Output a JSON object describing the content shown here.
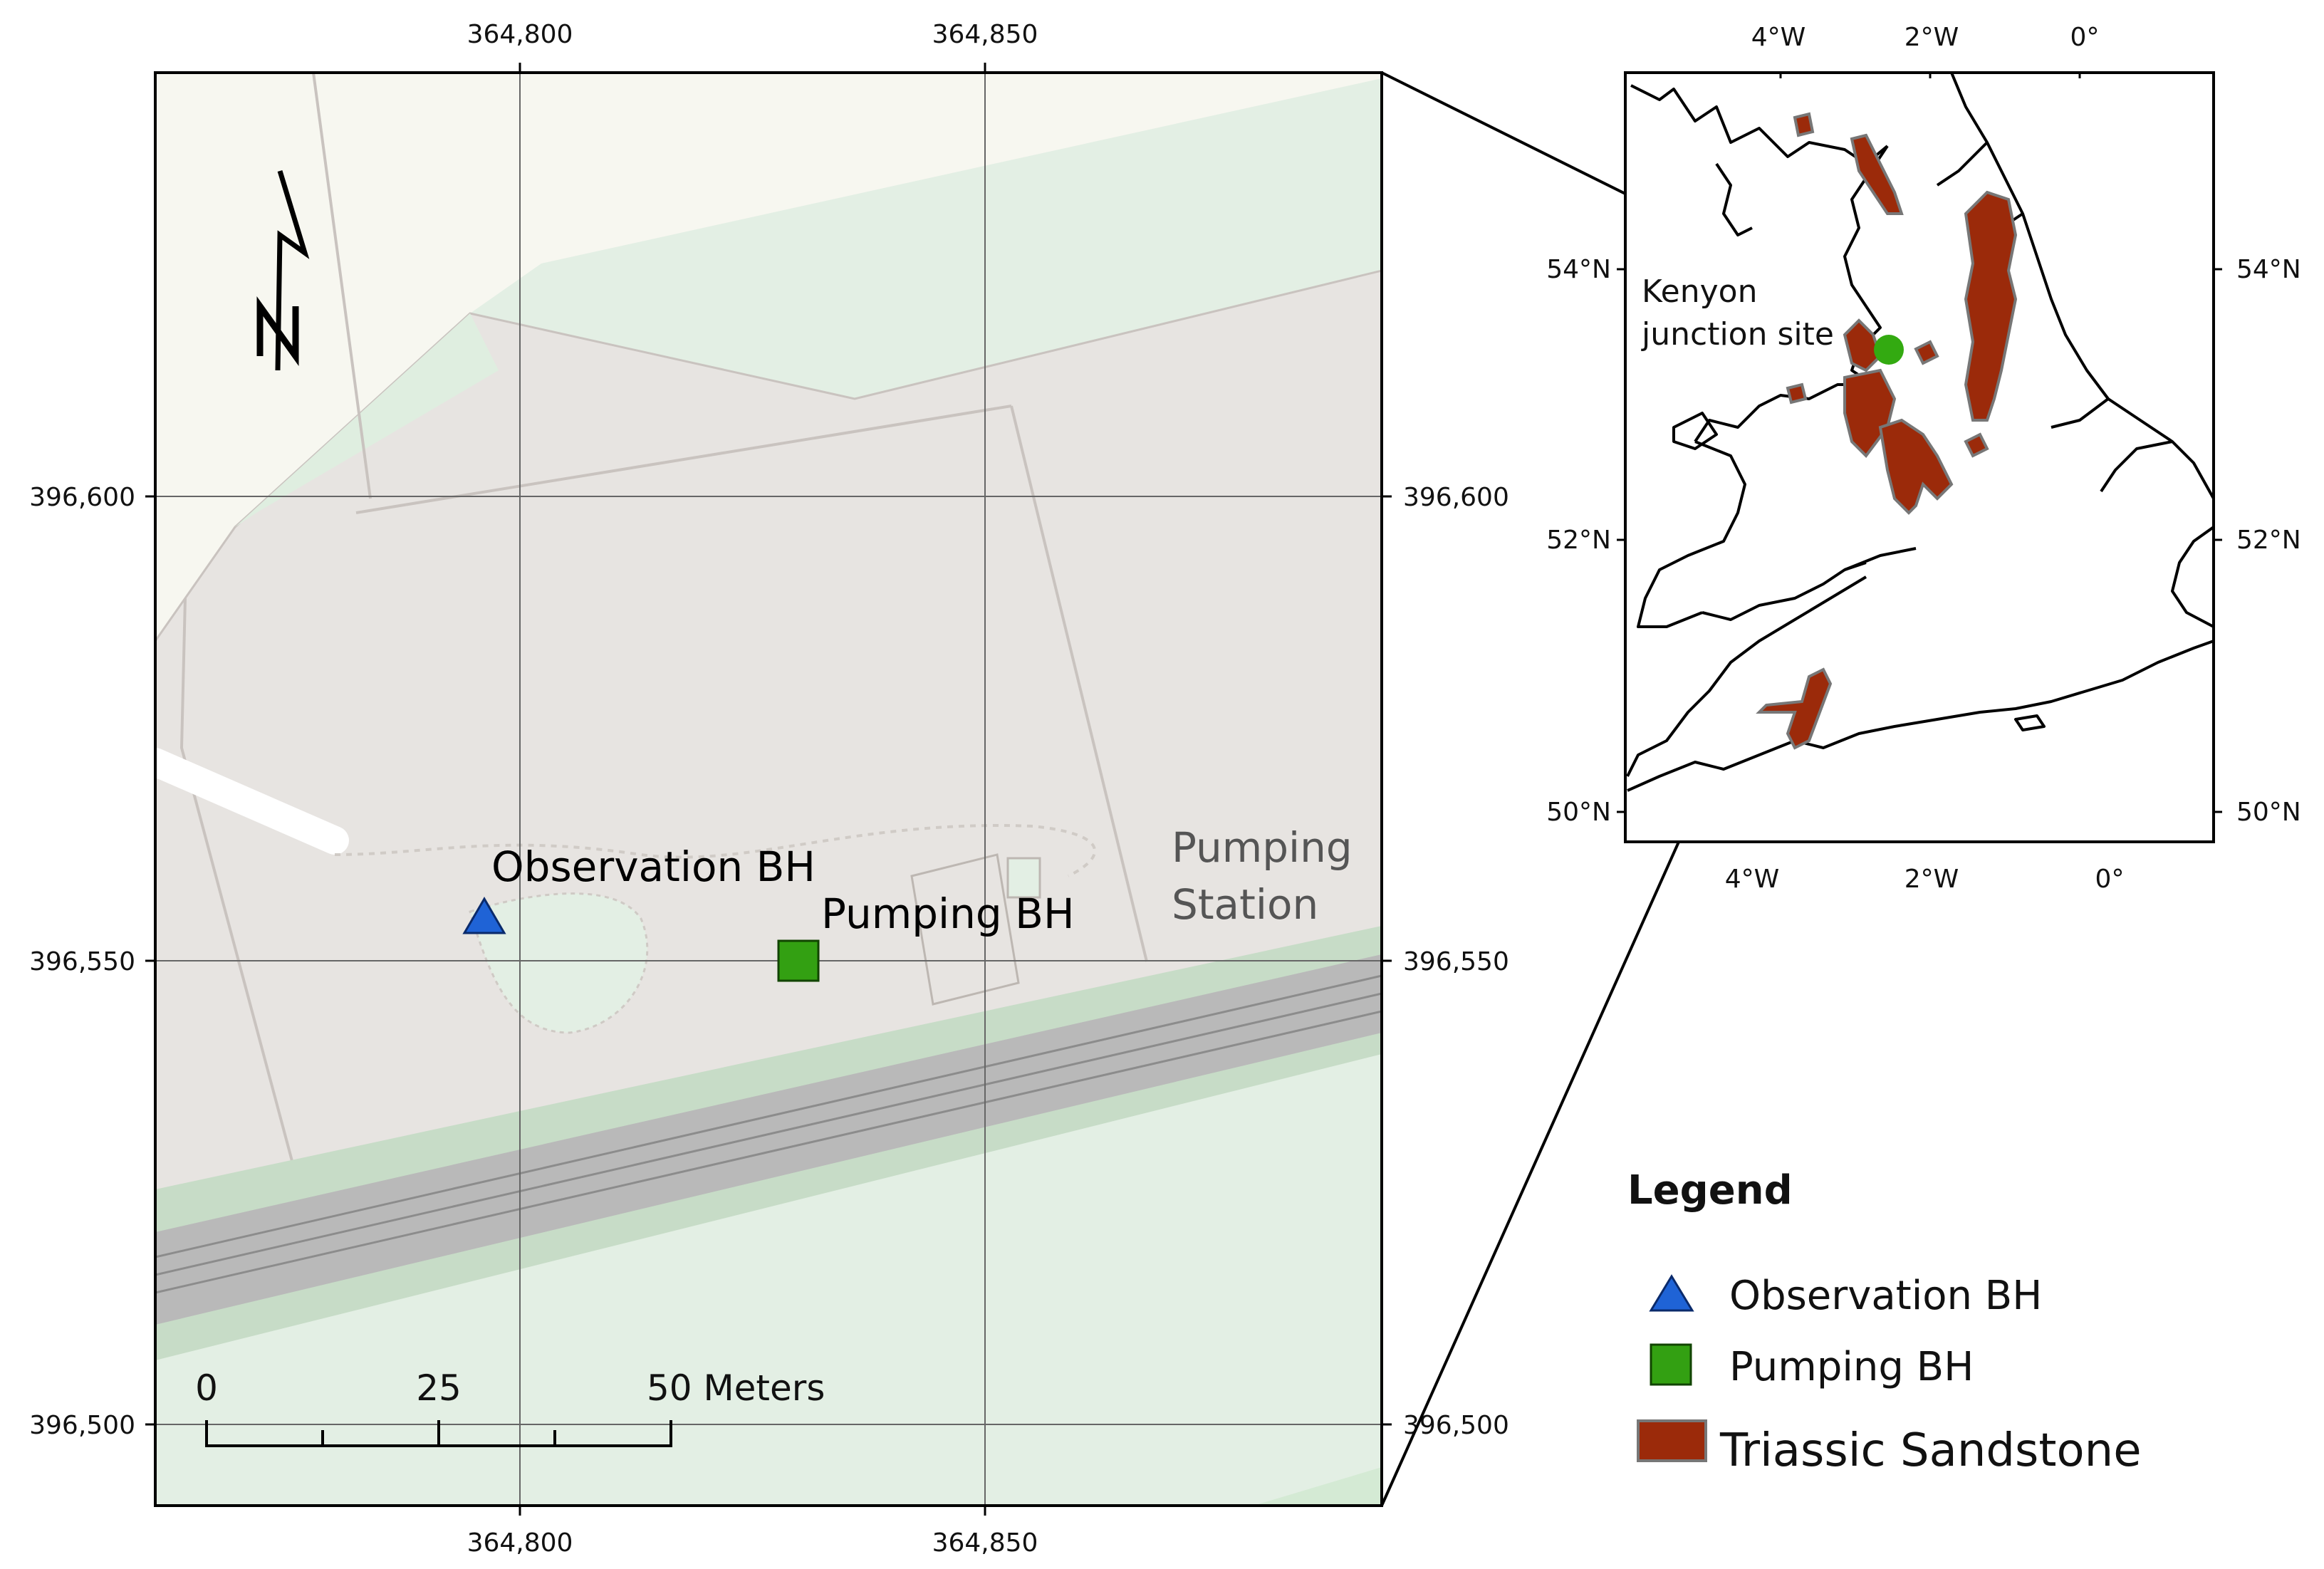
{
  "main_map": {
    "top_ticks": [
      "364,800",
      "364,850"
    ],
    "bottom_ticks": [
      "364,800",
      "364,850"
    ],
    "left_ticks": [
      "396,600",
      "396,550",
      "396,500"
    ],
    "right_ticks": [
      "396,600",
      "396,550",
      "396,500"
    ],
    "station_label_line1": "Pumping",
    "station_label_line2": "Station",
    "observation_label": "Observation BH",
    "pumping_label": "Pumping BH",
    "north_arrow_letter": "N",
    "scale_labels": [
      "0",
      "25",
      "50 Meters"
    ],
    "colors": {
      "land": "#e7e4e1",
      "park": "#e3efe4",
      "rail": "#b9b9b9",
      "rail_edge": "#c8dcc8",
      "background": "#f7f7f0"
    }
  },
  "inset_map": {
    "top_ticks": [
      "4°W",
      "2°W",
      "0°"
    ],
    "bottom_ticks": [
      "4°W",
      "2°W",
      "0°"
    ],
    "left_ticks": [
      "54°N",
      "52°N",
      "50°N"
    ],
    "right_ticks": [
      "54°N",
      "52°N",
      "50°N"
    ],
    "site_label_line1": "Kenyon",
    "site_label_line2": "junction site",
    "site_color": "#33aa11",
    "sandstone_color": "#9b2a0a"
  },
  "legend": {
    "title": "Legend",
    "items": [
      {
        "label": "Observation BH",
        "symbol": "triangle-icon",
        "color": "#1f63d6"
      },
      {
        "label": "Pumping BH",
        "symbol": "square-icon",
        "color": "#33a012"
      },
      {
        "label": "Triassic Sandstone",
        "symbol": "rectangle-icon",
        "color": "#9b2a0a"
      }
    ]
  }
}
